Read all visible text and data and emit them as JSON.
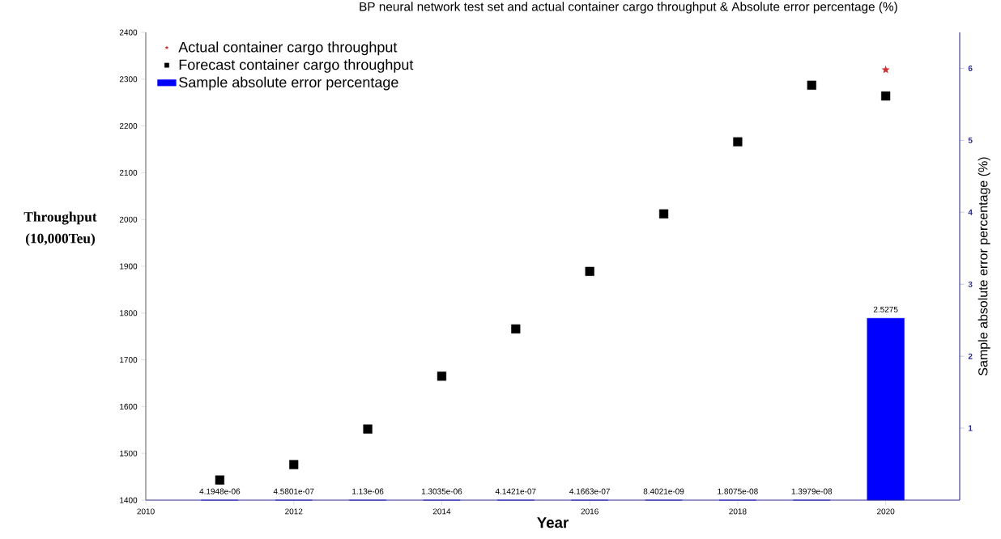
{
  "chart_data": {
    "type": "scatter",
    "title": "BP neural network test set and actual container cargo throughput & Absolute error percentage (%)",
    "xlabel": "Year",
    "ylabel": "Throughput (10,000Teu)",
    "y2label": "Sample absolute error percentage (%)",
    "x": [
      2011,
      2012,
      2013,
      2014,
      2015,
      2016,
      2017,
      2018,
      2019,
      2020
    ],
    "series": [
      {
        "name": "Actual container cargo throughput",
        "marker": "star",
        "color": "#d03030",
        "values": [
          null,
          null,
          null,
          null,
          null,
          null,
          null,
          null,
          null,
          2320
        ]
      },
      {
        "name": "Forecast container cargo throughput",
        "marker": "square",
        "color": "#000000",
        "values": [
          1443,
          1476,
          1552,
          1665,
          1766,
          1889,
          2012,
          2166,
          2287,
          2264
        ]
      },
      {
        "name": "Sample absolute error percentage",
        "type": "bar",
        "axis": "y2",
        "color": "#0000ff",
        "values": [
          4.1948e-06,
          4.5801e-07,
          1.13e-06,
          1.3035e-06,
          4.1421e-07,
          4.1663e-07,
          8.4021e-09,
          1.8075e-08,
          1.3979e-08,
          2.5275
        ],
        "value_labels": [
          "4.1948e-06",
          "4.5801e-07",
          "1.13e-06",
          "1.3035e-06",
          "4.1421e-07",
          "4.1663e-07",
          "8.4021e-09",
          "1.8075e-08",
          "1.3979e-08",
          "2.5275"
        ]
      }
    ],
    "xlim": [
      2010,
      2021
    ],
    "xticks": [
      2010,
      2012,
      2014,
      2016,
      2018,
      2020
    ],
    "ylim": [
      1400,
      2400
    ],
    "yticks": [
      1400,
      1500,
      1600,
      1700,
      1800,
      1900,
      2000,
      2100,
      2200,
      2300,
      2400
    ],
    "y2lim": [
      0,
      6.5
    ],
    "y2ticks": [
      1,
      2,
      3,
      4,
      5,
      6
    ],
    "legend": "top left",
    "grid": false
  }
}
